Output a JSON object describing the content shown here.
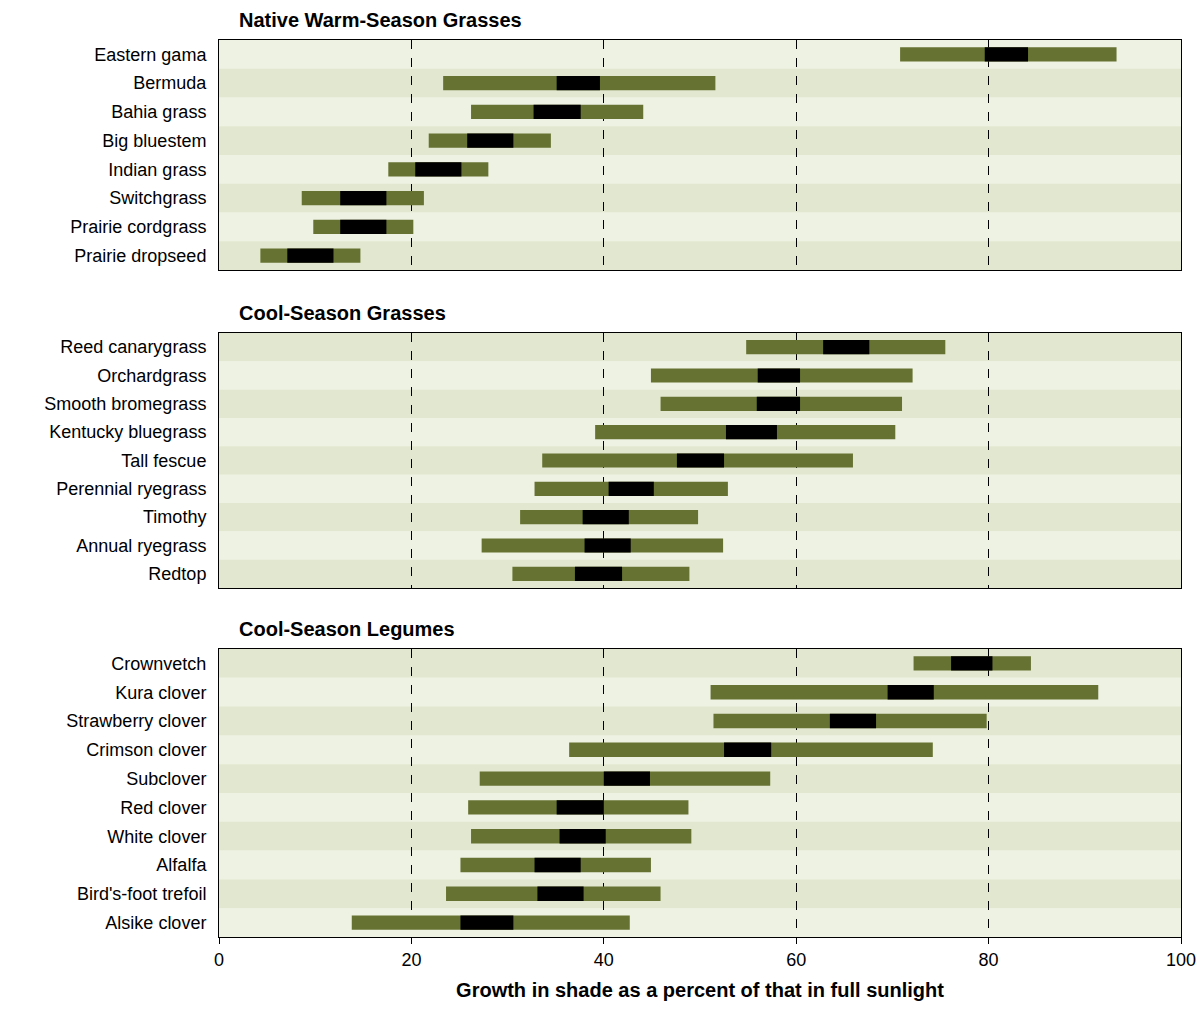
{
  "chart_data": [
    {
      "type": "bar",
      "orientation": "horizontal",
      "title": "Native Warm-Season Grasses",
      "categories": [
        "Eastern gama",
        "Bermuda",
        "Bahia grass",
        "Big bluestem",
        "Indian grass",
        "Switchgrass",
        "Prairie cordgrass",
        "Prairie dropseed"
      ],
      "series": [
        {
          "color": "#667232",
          "low": [
            70.8,
            23.3,
            26.2,
            21.8,
            17.6,
            8.6,
            9.8,
            4.3
          ],
          "high": [
            93.3,
            51.6,
            44.1,
            34.5,
            28.0,
            21.3,
            20.2,
            14.7
          ]
        },
        {
          "color": "#000000",
          "low": [
            79.6,
            35.1,
            32.7,
            25.8,
            20.4,
            12.6,
            12.6,
            7.1
          ],
          "high": [
            84.1,
            39.6,
            37.6,
            30.6,
            25.2,
            17.4,
            17.4,
            11.9
          ]
        }
      ],
      "xlim": [
        0,
        100
      ],
      "xticks": [
        0,
        20,
        40,
        60,
        80,
        100
      ],
      "grid": true,
      "tick_labels": "y"
    },
    {
      "type": "bar",
      "orientation": "horizontal",
      "title": "Cool-Season Grasses",
      "categories": [
        "Reed canarygrass",
        "Orchardgrass",
        "Smooth bromegrass",
        "Kentucky bluegrass",
        "Tall fescue",
        "Perennial ryegrass",
        "Timothy",
        "Annual ryegrass",
        "Redtop"
      ],
      "series": [
        {
          "color": "#667232",
          "low": [
            54.8,
            44.9,
            45.9,
            39.1,
            33.6,
            32.8,
            31.3,
            27.3,
            30.5
          ],
          "high": [
            75.5,
            72.1,
            71.0,
            70.3,
            65.9,
            52.9,
            49.8,
            52.4,
            48.9
          ]
        },
        {
          "color": "#000000",
          "low": [
            62.8,
            56.0,
            55.9,
            52.7,
            47.6,
            40.5,
            37.8,
            38.0,
            37.0
          ],
          "high": [
            67.6,
            60.4,
            60.4,
            58.0,
            52.5,
            45.2,
            42.6,
            42.8,
            41.9
          ]
        }
      ],
      "xlim": [
        0,
        100
      ],
      "xticks": [
        0,
        20,
        40,
        60,
        80,
        100
      ],
      "grid": true,
      "tick_labels": "y"
    },
    {
      "type": "bar",
      "orientation": "horizontal",
      "title": "Cool-Season Legumes",
      "categories": [
        "Crownvetch",
        "Kura clover",
        "Strawberry clover",
        "Crimson clover",
        "Subclover",
        "Red clover",
        "White clover",
        "Alfalfa",
        "Bird's-foot trefoil",
        "Alsike clover"
      ],
      "series": [
        {
          "color": "#667232",
          "low": [
            72.2,
            51.1,
            51.4,
            36.4,
            27.1,
            25.9,
            26.2,
            25.1,
            23.6,
            13.8
          ],
          "high": [
            84.4,
            91.4,
            79.8,
            74.2,
            57.3,
            48.8,
            49.1,
            44.9,
            45.9,
            42.7
          ]
        },
        {
          "color": "#000000",
          "low": [
            76.1,
            69.5,
            63.5,
            52.5,
            40.0,
            35.1,
            35.4,
            32.8,
            33.1,
            25.1
          ],
          "high": [
            80.4,
            74.3,
            68.3,
            57.4,
            44.8,
            40.0,
            40.2,
            37.6,
            37.9,
            30.6
          ]
        }
      ],
      "xlabel": "Growth in shade as a percent of that in full sunlight",
      "xlim": [
        0,
        100
      ],
      "xticks": [
        0,
        20,
        40,
        60,
        80,
        100
      ],
      "grid": true
    }
  ]
}
